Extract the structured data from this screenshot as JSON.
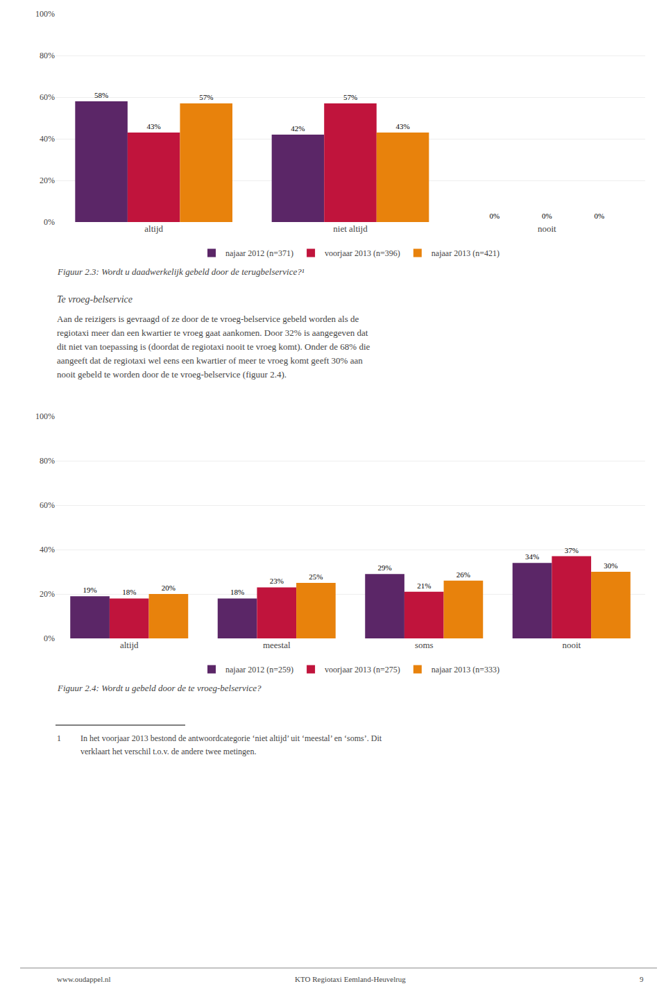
{
  "chart_data": [
    {
      "type": "bar",
      "title": "Figuur 2.3: Wordt u daadwerkelijk gebeld door de terugbelservice?¹",
      "categories": [
        "altijd",
        "niet altijd",
        "nooit"
      ],
      "series": [
        {
          "name": "najaar 2012 (n=371)",
          "color": "#5B2667",
          "values": [
            58,
            42,
            0
          ],
          "value_labels": [
            "58%",
            "42%",
            "0%"
          ]
        },
        {
          "name": "voorjaar 2013 (n=396)",
          "color": "#C0143C",
          "values": [
            43,
            57,
            0
          ],
          "value_labels": [
            "43%",
            "57%",
            "0%"
          ]
        },
        {
          "name": "najaar 2013 (n=421)",
          "color": "#E8820C",
          "values": [
            57,
            43,
            0
          ],
          "value_labels": [
            "57%",
            "43%",
            "0%"
          ]
        }
      ],
      "ylim": [
        0,
        100
      ],
      "yticks": [
        {
          "value": 0,
          "label": "0%"
        },
        {
          "value": 20,
          "label": "20%"
        },
        {
          "value": 40,
          "label": "40%"
        },
        {
          "value": 60,
          "label": "60%"
        },
        {
          "value": 80,
          "label": "80%"
        },
        {
          "value": 100,
          "label": "100%"
        }
      ],
      "grid": true,
      "legend": "bottom",
      "data_labels": true,
      "annotations": [
        "Te vroeg-belservice",
        "Aan de reizigers is gevraagd of ze door de te vroeg-belservice gebeld worden als de",
        "regiotaxi meer dan een kwartier te vroeg gaat aankomen. Door 32% is aangegeven dat",
        "dit niet van toepassing is (doordat de regiotaxi nooit te vroeg komt). Onder de 68% die",
        "aangeeft dat de regiotaxi wel eens een kwartier of meer te vroeg komt geeft 30% aan",
        "nooit gebeld te worden door de te vroeg-belservice (figuur 2.4)."
      ]
    },
    {
      "type": "bar",
      "title": "Figuur 2.4: Wordt u gebeld door de te vroeg-belservice?",
      "categories": [
        "altijd",
        "meestal",
        "soms",
        "nooit"
      ],
      "series": [
        {
          "name": "najaar 2012 (n=259)",
          "color": "#5B2667",
          "values": [
            19,
            18,
            29,
            34
          ],
          "value_labels": [
            "19%",
            "18%",
            "29%",
            "34%"
          ]
        },
        {
          "name": "voorjaar 2013 (n=275)",
          "color": "#C0143C",
          "values": [
            18,
            23,
            21,
            37
          ],
          "value_labels": [
            "18%",
            "23%",
            "21%",
            "37%"
          ]
        },
        {
          "name": "najaar 2013 (n=333)",
          "color": "#E8820C",
          "values": [
            20,
            25,
            26,
            30
          ],
          "value_labels": [
            "20%",
            "25%",
            "26%",
            "30%"
          ]
        }
      ],
      "ylim": [
        0,
        100
      ],
      "yticks": [
        {
          "value": 0,
          "label": "0%"
        },
        {
          "value": 20,
          "label": "20%"
        },
        {
          "value": 40,
          "label": "40%"
        },
        {
          "value": 60,
          "label": "60%"
        },
        {
          "value": 80,
          "label": "80%"
        },
        {
          "value": 100,
          "label": "100%"
        }
      ],
      "grid": true,
      "legend": "bottom",
      "data_labels": true,
      "annotations": [
        "1",
        "In het voorjaar 2013 bestond de antwoordcategorie ‘niet altijd’ uit ‘meestal’ en ‘soms’. Dit",
        "verklaart het verschil t.o.v. de andere twee metingen.",
        "www.oudappel.nl",
        "KTO Regiotaxi Eemland-Heuvelrug",
        "9"
      ]
    }
  ]
}
